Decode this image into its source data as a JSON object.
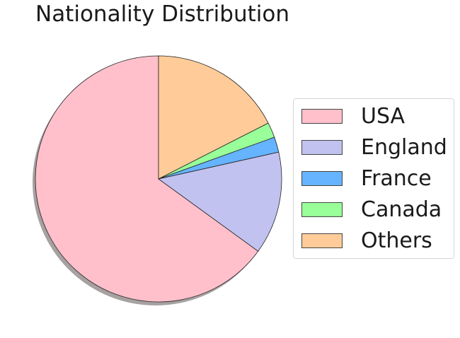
{
  "chart_data": {
    "type": "pie",
    "title": "Nationality Distribution",
    "labels": [
      "USA",
      "England",
      "France",
      "Canada",
      "Others"
    ],
    "values": [
      65,
      13.5,
      2,
      2,
      17.5
    ],
    "colors": [
      "#ffc0cb",
      "#c2c2f0",
      "#66b3ff",
      "#99ff99",
      "#ffcc99"
    ],
    "start_angle_deg": 90,
    "direction": "counterclockwise",
    "shadow": true,
    "edge_color": "#222222",
    "legend_position": "right"
  }
}
